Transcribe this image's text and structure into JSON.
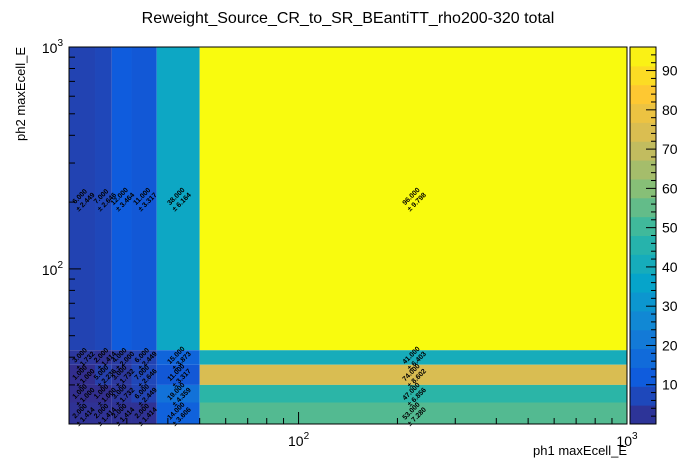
{
  "chart_data": {
    "type": "heatmap",
    "title": "Reweight_Source_CR_to_SR_BEantiTT_rho200-320 total",
    "xlabel": "ph1 maxEcell_E",
    "ylabel": "ph2 maxEcell_E",
    "x_scale": "log",
    "y_scale": "log",
    "xlim": [
      20,
      1000
    ],
    "ylim": [
      20,
      1000
    ],
    "x_ticks": [
      {
        "value": 100,
        "label": "10",
        "exp": "2"
      },
      {
        "value": 1000,
        "label": "10",
        "exp": "3"
      }
    ],
    "y_ticks": [
      {
        "value": 100,
        "label": "10",
        "exp": "2"
      },
      {
        "value": 1000,
        "label": "10",
        "exp": "3"
      }
    ],
    "z_range": [
      0,
      96
    ],
    "colorbar_ticks": [
      10,
      20,
      30,
      40,
      50,
      60,
      70,
      80,
      90
    ],
    "x_edges": [
      20,
      24,
      27,
      31,
      37,
      50,
      1000
    ],
    "y_edges": [
      20,
      25,
      30,
      37,
      43,
      1000
    ],
    "cells": [
      {
        "ix": 0,
        "iy": 4,
        "value": 6,
        "label": "6.000",
        "err": "± 2.449"
      },
      {
        "ix": 1,
        "iy": 4,
        "value": 7,
        "label": "7.000",
        "err": "± 2.646"
      },
      {
        "ix": 2,
        "iy": 4,
        "value": 12,
        "label": "12.000",
        "err": "± 3.464"
      },
      {
        "ix": 3,
        "iy": 4,
        "value": 11,
        "label": "11.000",
        "err": "± 3.317"
      },
      {
        "ix": 4,
        "iy": 4,
        "value": 38,
        "label": "38.000",
        "err": "± 6.164"
      },
      {
        "ix": 5,
        "iy": 4,
        "value": 96,
        "label": "96.000",
        "err": "± 9.798"
      },
      {
        "ix": 0,
        "iy": 3,
        "value": 3,
        "label": "3.000",
        "err": "± 1.732"
      },
      {
        "ix": 1,
        "iy": 3,
        "value": 2,
        "label": "2.000",
        "err": "± 1.414"
      },
      {
        "ix": 2,
        "iy": 3,
        "value": 4,
        "label": "4.000",
        "err": "± 2.000"
      },
      {
        "ix": 3,
        "iy": 3,
        "value": 6,
        "label": "6.000",
        "err": "± 2.449"
      },
      {
        "ix": 4,
        "iy": 3,
        "value": 15,
        "label": "15.000",
        "err": "± 3.873"
      },
      {
        "ix": 5,
        "iy": 3,
        "value": 41,
        "label": "41.000",
        "err": "± 6.403"
      },
      {
        "ix": 0,
        "iy": 2,
        "value": 1,
        "label": "1.000",
        "err": "± 1.000"
      },
      {
        "ix": 1,
        "iy": 2,
        "value": 5,
        "label": "5.000",
        "err": "± 2.236"
      },
      {
        "ix": 2,
        "iy": 2,
        "value": 3,
        "label": "3.000",
        "err": "± 1.732"
      },
      {
        "ix": 3,
        "iy": 2,
        "value": 7,
        "label": "7.000",
        "err": "± 2.646"
      },
      {
        "ix": 4,
        "iy": 2,
        "value": 11,
        "label": "11.000",
        "err": "± 3.317"
      },
      {
        "ix": 5,
        "iy": 2,
        "value": 74,
        "label": "74.000",
        "err": "± 8.602"
      },
      {
        "ix": 0,
        "iy": 1,
        "value": 1,
        "label": "1.000",
        "err": "± 1.000"
      },
      {
        "ix": 1,
        "iy": 1,
        "value": 1,
        "label": "1.000",
        "err": "± 1.000"
      },
      {
        "ix": 2,
        "iy": 1,
        "value": 3,
        "label": "3.000",
        "err": "± 1.732"
      },
      {
        "ix": 3,
        "iy": 1,
        "value": 6,
        "label": "6.000",
        "err": "± 2.449"
      },
      {
        "ix": 4,
        "iy": 1,
        "value": 19,
        "label": "19.000",
        "err": "± 4.359"
      },
      {
        "ix": 5,
        "iy": 1,
        "value": 47,
        "label": "47.000",
        "err": "± 6.856"
      },
      {
        "ix": 0,
        "iy": 0,
        "value": 2,
        "label": "2.000",
        "err": "± 1.414"
      },
      {
        "ix": 1,
        "iy": 0,
        "value": 2,
        "label": "2.000",
        "err": "± 1.414"
      },
      {
        "ix": 2,
        "iy": 0,
        "value": 2,
        "label": "2.000",
        "err": "± 1.414"
      },
      {
        "ix": 3,
        "iy": 0,
        "value": 2,
        "label": "2.000",
        "err": "± 1.414"
      },
      {
        "ix": 4,
        "iy": 0,
        "value": 14,
        "label": "14.000",
        "err": "± 3.606"
      },
      {
        "ix": 5,
        "iy": 0,
        "value": 53,
        "label": "53.000",
        "err": "± 7.280"
      }
    ],
    "colormap": [
      "#352a87",
      "#0f5cdd",
      "#1481d6",
      "#06a4ca",
      "#2eb7a4",
      "#87bf77",
      "#d1bb59",
      "#fec832",
      "#f9fb0e"
    ]
  }
}
